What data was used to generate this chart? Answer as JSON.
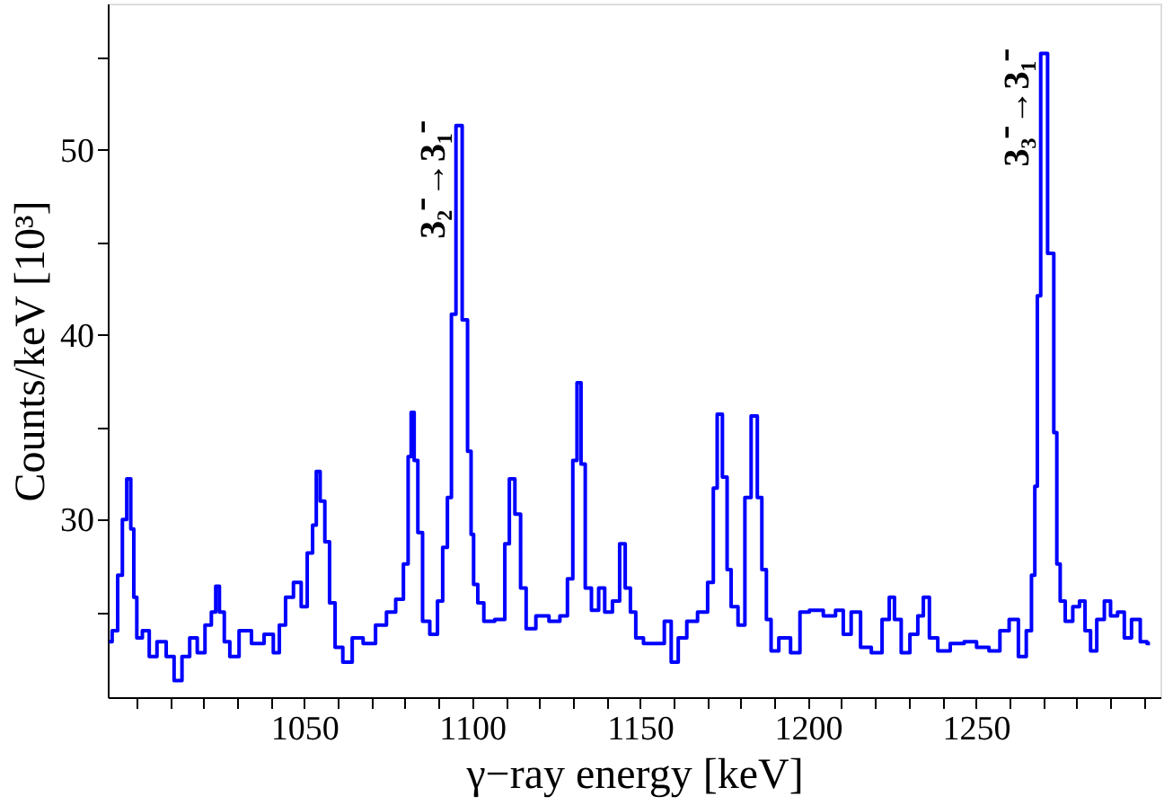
{
  "chart_data": {
    "type": "step",
    "xlabel": "γ−ray energy [keV]",
    "ylabel": "Counts/keV [10³]",
    "x": [
      991.9,
      993.7,
      995.2,
      996.5,
      997.8,
      998.9,
      999.6,
      1000.7,
      1002.9,
      1004.8,
      1007.5,
      1010.3,
      1012.2,
      1015.0,
      1016.8,
      1019.5,
      1021.4,
      1023.3,
      1024.0,
      1025.5,
      1026.9,
      1028.8,
      1032.4,
      1036.2,
      1039.9,
      1041.7,
      1043.5,
      1045.4,
      1048.2,
      1050.0,
      1051.8,
      1053.2,
      1054.0,
      1055.5,
      1056.8,
      1058.3,
      1060.1,
      1062.9,
      1065.7,
      1069.4,
      1073.1,
      1075.9,
      1078.6,
      1080.5,
      1081.4,
      1082.3,
      1083.2,
      1084.5,
      1086.0,
      1088.8,
      1090.6,
      1091.9,
      1093.4,
      1094.3,
      1096.1,
      1098.0,
      1099.3,
      1100.1,
      1100.8,
      1102.6,
      1104.4,
      1109.1,
      1110.4,
      1111.8,
      1113.7,
      1115.2,
      1117.0,
      1121.0,
      1124.8,
      1127.5,
      1129.3,
      1130.7,
      1131.8,
      1133.1,
      1134.3,
      1136.8,
      1138.6,
      1140.4,
      1143.2,
      1144.7,
      1146.5,
      1147.8,
      1149.7,
      1152.4,
      1156.1,
      1158.4,
      1160.2,
      1162.6,
      1165.3,
      1169.0,
      1171.3,
      1172.4,
      1173.6,
      1175.5,
      1176.4,
      1177.9,
      1180.5,
      1182.0,
      1184.2,
      1185.7,
      1186.9,
      1188.4,
      1189.7,
      1193.0,
      1196.7,
      1198.6,
      1202.3,
      1206.9,
      1209.6,
      1211.5,
      1214.3,
      1217.1,
      1220.7,
      1223.5,
      1225.0,
      1226.6,
      1229.0,
      1231.8,
      1233.7,
      1235.1,
      1237.3,
      1240.1,
      1244.7,
      1248.4,
      1252.1,
      1255.8,
      1258.6,
      1261.3,
      1264.1,
      1266.0,
      1267.2,
      1268.0,
      1268.7,
      1270.0,
      1272.8,
      1273.7,
      1274.6,
      1275.7,
      1277.6,
      1280.2,
      1281.6,
      1283.5,
      1284.9,
      1287.2,
      1289.4,
      1290.9,
      1293.6,
      1294.9,
      1297.9,
      1300.1,
      1301.9
    ],
    "series": [
      {
        "color": "#0000ff",
        "values": [
          23.4,
          24.0,
          27.0,
          30.0,
          32.2,
          29.5,
          25.8,
          23.6,
          24.0,
          22.6,
          23.4,
          22.6,
          21.3,
          22.6,
          23.6,
          22.8,
          24.3,
          25.0,
          26.4,
          25.0,
          23.4,
          22.6,
          24.0,
          23.3,
          23.8,
          22.8,
          24.3,
          25.8,
          26.6,
          25.3,
          28.2,
          29.7,
          32.6,
          31.0,
          28.8,
          25.5,
          23.1,
          22.3,
          23.6,
          23.3,
          24.3,
          25.0,
          25.7,
          27.6,
          33.4,
          35.8,
          33.2,
          29.3,
          24.5,
          23.8,
          25.6,
          28.5,
          31.2,
          41.1,
          51.3,
          40.8,
          33.7,
          29.2,
          26.5,
          25.5,
          24.5,
          24.6,
          28.7,
          32.2,
          30.3,
          26.3,
          24.1,
          24.8,
          24.5,
          24.8,
          26.8,
          33.2,
          37.4,
          33.0,
          26.3,
          25.1,
          26.3,
          25.0,
          25.6,
          28.7,
          26.3,
          25.0,
          23.6,
          23.3,
          23.3,
          24.5,
          22.3,
          23.6,
          24.5,
          25.0,
          26.6,
          31.7,
          35.7,
          32.3,
          27.3,
          25.3,
          24.3,
          31.2,
          35.6,
          31.2,
          27.3,
          24.6,
          22.9,
          23.6,
          22.8,
          25.0,
          25.1,
          24.8,
          25.1,
          23.8,
          25.0,
          23.1,
          22.8,
          24.6,
          25.8,
          24.6,
          22.8,
          23.8,
          24.8,
          25.8,
          23.6,
          22.9,
          23.3,
          23.4,
          23.1,
          22.9,
          24.0,
          24.6,
          22.6,
          24.0,
          27.0,
          31.8,
          42.1,
          55.2,
          44.4,
          34.7,
          27.6,
          25.6,
          24.5,
          25.3,
          25.6,
          24.0,
          22.9,
          24.6,
          25.6,
          24.8,
          25.0,
          23.6,
          24.6,
          23.4,
          23.3
        ]
      }
    ],
    "xlim": [
      991.5,
      1305
    ],
    "xticks": [
      {
        "value": 1000,
        "label": null
      },
      {
        "value": 1010,
        "label": null
      },
      {
        "value": 1020,
        "label": null
      },
      {
        "value": 1030,
        "label": null
      },
      {
        "value": 1040,
        "label": null
      },
      1050,
      {
        "value": 1060,
        "label": null
      },
      {
        "value": 1070,
        "label": null
      },
      {
        "value": 1080,
        "label": null
      },
      {
        "value": 1090,
        "label": null
      },
      1100,
      {
        "value": 1110,
        "label": null
      },
      {
        "value": 1120,
        "label": null
      },
      {
        "value": 1130,
        "label": null
      },
      {
        "value": 1140,
        "label": null
      },
      1150,
      {
        "value": 1160,
        "label": null
      },
      {
        "value": 1170,
        "label": null
      },
      {
        "value": 1180,
        "label": null
      },
      {
        "value": 1190,
        "label": null
      },
      1200,
      {
        "value": 1210,
        "label": null
      },
      {
        "value": 1220,
        "label": null
      },
      {
        "value": 1230,
        "label": null
      },
      {
        "value": 1240,
        "label": null
      },
      1250,
      {
        "value": 1260,
        "label": null
      },
      {
        "value": 1270,
        "label": null
      },
      {
        "value": 1280,
        "label": null
      },
      {
        "value": 1290,
        "label": null
      },
      {
        "value": 1300,
        "label": null
      }
    ],
    "ylim": [
      20.4,
      57.9
    ],
    "yticks": [
      {
        "value": 25,
        "label": null
      },
      30,
      {
        "value": 35,
        "label": null
      },
      40,
      {
        "value": 45,
        "label": null
      },
      50,
      {
        "value": 55,
        "label": null
      }
    ],
    "grid": false,
    "annotations": [
      {
        "text": "3₂⁻→3₁⁻",
        "x": 1096.1,
        "y": 51.3
      },
      {
        "text": "3₃⁻→3₁⁻",
        "x": 1270.0,
        "y": 55.2
      }
    ]
  }
}
